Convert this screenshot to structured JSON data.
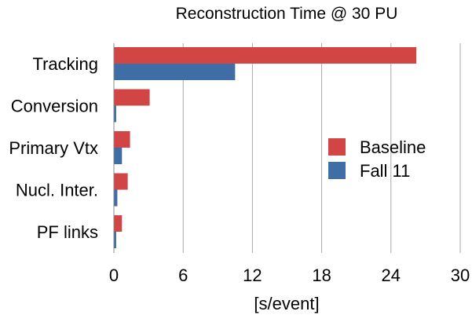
{
  "chart_data": {
    "type": "bar",
    "orientation": "horizontal",
    "title": "Reconstruction Time @ 30 PU",
    "xlabel": "[s/event]",
    "ylabel": "",
    "xlim": [
      0,
      30
    ],
    "x_ticks": [
      "0",
      "6",
      "12",
      "18",
      "24",
      "30"
    ],
    "grid": "vertical",
    "legend_position": "right",
    "categories": [
      "Tracking",
      "Conversion",
      "Primary Vtx",
      "Nucl. Inter.",
      "PF links"
    ],
    "series": [
      {
        "name": "Baseline",
        "color": "#d24545",
        "values": [
          26.2,
          3.1,
          1.4,
          1.2,
          0.7
        ]
      },
      {
        "name": "Fall 11",
        "color": "#3e6ea5",
        "values": [
          10.5,
          0.2,
          0.7,
          0.3,
          0.2
        ]
      }
    ]
  }
}
